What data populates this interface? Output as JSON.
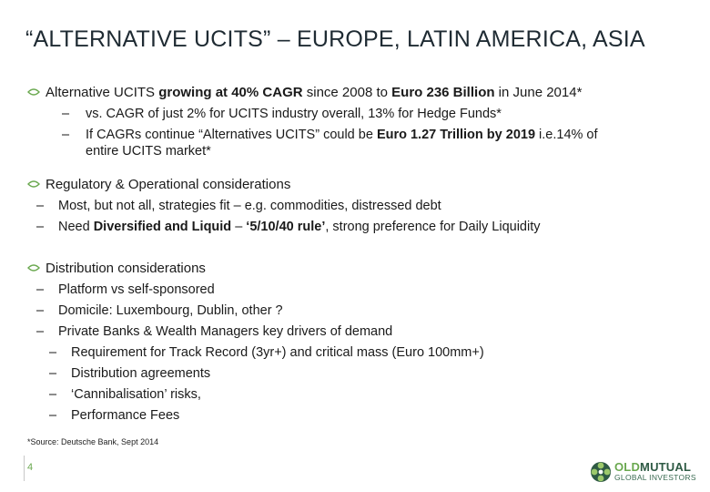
{
  "title": "“ALTERNATIVE UCITS” – EUROPE, LATIN AMERICA, ASIA",
  "sections": {
    "s1": {
      "bullet": [
        "Alternative UCITS ",
        "growing at 40% CAGR",
        " since 2008 to ",
        "Euro 236 Billion",
        " in June 2014*"
      ],
      "sub1": "vs. CAGR of just 2% for UCITS industry overall, 13% for Hedge Funds*",
      "sub2": [
        "If CAGRs continue “Alternatives UCITS” could be ",
        "Euro 1.27 Trillion by 2019",
        " i.e.14% of"
      ],
      "sub2b": "entire UCITS market*"
    },
    "s2": {
      "bullet": "Regulatory & Operational considerations",
      "sub1": "Most, but not all, strategies fit – e.g. commodities, distressed debt",
      "sub2": [
        "Need ",
        "Diversified and Liquid",
        " – ",
        "‘5/10/40 rule’",
        ", strong preference for Daily Liquidity"
      ]
    },
    "s3": {
      "bullet": "Distribution considerations",
      "subs": [
        "Platform vs self-sponsored",
        "Domicile:  Luxembourg, Dublin, other ?",
        "Private Banks & Wealth Managers key drivers of demand"
      ],
      "subsubs": [
        "Requirement for Track Record (3yr+) and critical mass (Euro 100mm+)",
        "Distribution agreements",
        "‘Cannibalisation’ risks,",
        "Performance Fees"
      ]
    }
  },
  "dash": "–",
  "source": "*Source: Deutsche Bank, Sept 2014",
  "page_number": "4",
  "logo": {
    "line1a": "OLD",
    "line1b": "MUTUAL",
    "line2": "GLOBAL INVESTORS",
    "icon": "old-mutual-logo-icon"
  },
  "colors": {
    "accent_green": "#6aa84f",
    "logo_dark": "#2e5a44",
    "logo_green": "#6aa84f",
    "bullet": "#6aa84f"
  }
}
